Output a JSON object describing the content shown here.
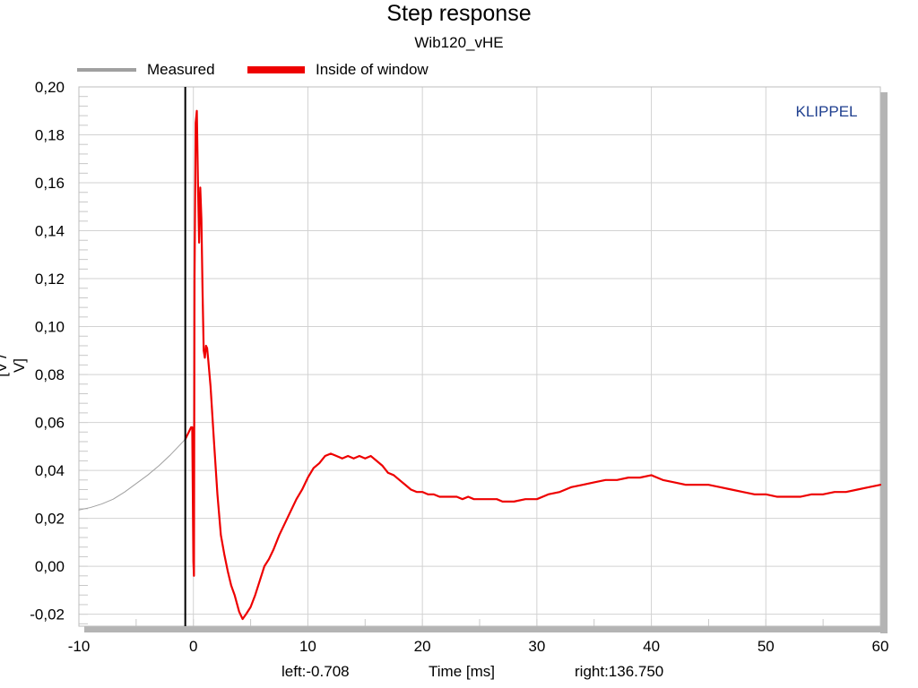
{
  "chart_data": {
    "type": "line",
    "title": "Step response",
    "subtitle": "Wib120_vHE",
    "xlabel": "Time [ms]",
    "ylabel": "[V / V]",
    "xlim": [
      -10,
      60
    ],
    "ylim": [
      -0.025,
      0.2
    ],
    "x_ticks": [
      -10,
      0,
      10,
      20,
      30,
      40,
      50,
      60
    ],
    "x_tick_labels": [
      "-10",
      "0",
      "10",
      "20",
      "30",
      "40",
      "50",
      "60"
    ],
    "y_ticks": [
      -0.02,
      0.0,
      0.02,
      0.04,
      0.06,
      0.08,
      0.1,
      0.12,
      0.14,
      0.16,
      0.18,
      0.2
    ],
    "y_tick_labels": [
      "-0,02",
      "0,00",
      "0,02",
      "0,04",
      "0,06",
      "0,08",
      "0,10",
      "0,12",
      "0,14",
      "0,16",
      "0,18",
      "0,20"
    ],
    "grid": true,
    "legend_position": "top-left",
    "annotations": {
      "brand": "KLIPPEL",
      "left": "left:-0.708",
      "right": "right:136.750"
    },
    "marker_line_x": -0.708,
    "series": [
      {
        "name": "Measured",
        "color": "#a0a0a0",
        "x": [
          -10,
          -9,
          -8,
          -7,
          -6,
          -5,
          -4,
          -3,
          -2,
          -1,
          -0.708
        ],
        "y": [
          0.0235,
          0.0245,
          0.026,
          0.028,
          0.031,
          0.0345,
          0.038,
          0.042,
          0.0465,
          0.0515,
          0.053
        ]
      },
      {
        "name": "Inside of window",
        "color": "#ee0000",
        "x": [
          -0.708,
          -0.4,
          -0.2,
          -0.1,
          0.0,
          0.05,
          0.1,
          0.2,
          0.3,
          0.4,
          0.5,
          0.6,
          0.7,
          0.8,
          0.9,
          1.0,
          1.1,
          1.2,
          1.3,
          1.5,
          1.8,
          2.1,
          2.4,
          2.7,
          3.0,
          3.3,
          3.6,
          4.0,
          4.3,
          4.6,
          5.0,
          5.4,
          5.8,
          6.2,
          6.6,
          7.0,
          7.5,
          8.0,
          8.5,
          9.0,
          9.5,
          10.0,
          10.5,
          11.0,
          11.5,
          12.0,
          12.5,
          13.0,
          13.5,
          14.0,
          14.5,
          15.0,
          15.5,
          16.0,
          16.5,
          17.0,
          17.5,
          18.0,
          18.5,
          19.0,
          19.5,
          20.0,
          20.5,
          21.0,
          21.5,
          22.0,
          22.5,
          23.0,
          23.5,
          24.0,
          24.5,
          25.0,
          25.5,
          26.0,
          26.5,
          27.0,
          27.5,
          28.0,
          29.0,
          30.0,
          31.0,
          32.0,
          33.0,
          34.0,
          35.0,
          36.0,
          37.0,
          38.0,
          39.0,
          40.0,
          40.5,
          41.0,
          42.0,
          43.0,
          44.0,
          45.0,
          46.0,
          47.0,
          48.0,
          49.0,
          50.0,
          51.0,
          52.0,
          53.0,
          54.0,
          55.0,
          56.0,
          57.0,
          58.0,
          59.0,
          60.0
        ],
        "y": [
          0.053,
          0.056,
          0.058,
          0.058,
          0.002,
          -0.004,
          0.12,
          0.185,
          0.19,
          0.16,
          0.135,
          0.158,
          0.145,
          0.115,
          0.09,
          0.087,
          0.092,
          0.091,
          0.086,
          0.075,
          0.052,
          0.03,
          0.013,
          0.005,
          -0.002,
          -0.008,
          -0.012,
          -0.019,
          -0.022,
          -0.02,
          -0.017,
          -0.012,
          -0.006,
          0.0,
          0.003,
          0.007,
          0.013,
          0.018,
          0.023,
          0.028,
          0.032,
          0.037,
          0.041,
          0.043,
          0.046,
          0.047,
          0.046,
          0.045,
          0.046,
          0.045,
          0.046,
          0.045,
          0.046,
          0.044,
          0.042,
          0.039,
          0.038,
          0.036,
          0.034,
          0.032,
          0.031,
          0.031,
          0.03,
          0.03,
          0.029,
          0.029,
          0.029,
          0.029,
          0.028,
          0.029,
          0.028,
          0.028,
          0.028,
          0.028,
          0.028,
          0.027,
          0.027,
          0.027,
          0.028,
          0.028,
          0.03,
          0.031,
          0.033,
          0.034,
          0.035,
          0.036,
          0.036,
          0.037,
          0.037,
          0.038,
          0.037,
          0.036,
          0.035,
          0.034,
          0.034,
          0.034,
          0.033,
          0.032,
          0.031,
          0.03,
          0.03,
          0.029,
          0.029,
          0.029,
          0.03,
          0.03,
          0.031,
          0.031,
          0.032,
          0.033,
          0.034
        ]
      }
    ]
  }
}
